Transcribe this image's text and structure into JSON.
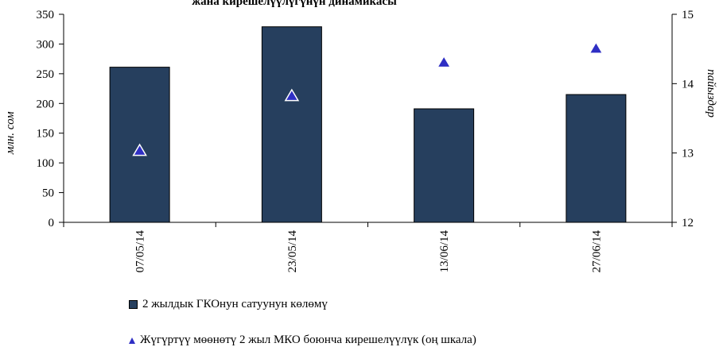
{
  "chart_data": {
    "type": "bar",
    "title": "жана кирешелүүлүгүнүн динамикасы",
    "categories": [
      "07/05/14",
      "23/05/14",
      "13/06/14",
      "27/06/14"
    ],
    "series": [
      {
        "name": "2 жылдык ГКОнун сатуунун көлөмү",
        "type": "bar",
        "axis": "left",
        "values": [
          261,
          329,
          191,
          215
        ],
        "color": "#263f5e"
      },
      {
        "name": "Жүгүртүү мөөнөтү 2 жыл МКО боюнча кирешелүүлүк (оң шкала)",
        "type": "scatter",
        "axis": "right",
        "values": [
          13.03,
          13.82,
          14.3,
          14.5
        ],
        "color": "#2f2fc4"
      }
    ],
    "ylabel": "млн. сом",
    "ylabel_right": "пайыздар",
    "ylim": [
      0,
      350
    ],
    "yticks": [
      "0",
      "50",
      "100",
      "150",
      "200",
      "250",
      "300",
      "350"
    ],
    "ylim_right": [
      12,
      15
    ],
    "yticks_right": [
      "12",
      "13",
      "14",
      "15"
    ],
    "grid": false,
    "legend_position": "bottom-left"
  }
}
